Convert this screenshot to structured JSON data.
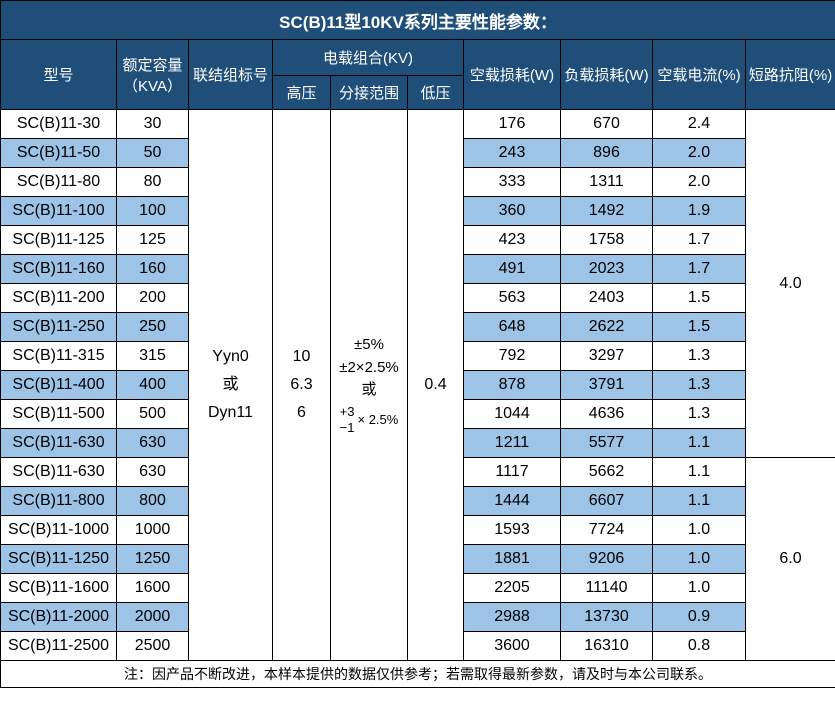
{
  "title": "SC(B)11型10KV系列主要性能参数：",
  "colors": {
    "header_bg": "#1F4E79",
    "alt_row_bg": "#9DC3E6",
    "row_bg": "#FFFFFF",
    "border": "#000000",
    "header_text": "#FFFFFF",
    "body_text": "#000000"
  },
  "header": {
    "model": "型号",
    "capacity_line1": "额定容量",
    "capacity_line2": "（KVA）",
    "connection": "联结组标号",
    "voltage_group": "电载组合(KV)",
    "hv": "高压",
    "tap_range": "分接范围",
    "lv": "低压",
    "no_load_loss": "空载损耗(W)",
    "load_loss": "负载损耗(W)",
    "no_load_current": "空载电流(%)",
    "impedance": "短路抗阻(%)"
  },
  "merged": {
    "connection_lines": [
      "Yyn0",
      "或",
      "Dyn11"
    ],
    "hv_lines": [
      "10",
      "6.3",
      "6"
    ],
    "tap_lines": [
      "±5%",
      "±2×2.5%",
      "或"
    ],
    "tap_fraction": {
      "top": "+3",
      "bottom": "−1",
      "suffix": "× 2.5%"
    },
    "lv": "0.4",
    "impedance_top": "4.0",
    "impedance_bottom": "6.0"
  },
  "rows": [
    {
      "model": "SC(B)11-30",
      "capacity": "30",
      "no_load_loss": "176",
      "load_loss": "670",
      "no_load_current": "2.4"
    },
    {
      "model": "SC(B)11-50",
      "capacity": "50",
      "no_load_loss": "243",
      "load_loss": "896",
      "no_load_current": "2.0"
    },
    {
      "model": "SC(B)11-80",
      "capacity": "80",
      "no_load_loss": "333",
      "load_loss": "1311",
      "no_load_current": "2.0"
    },
    {
      "model": "SC(B)11-100",
      "capacity": "100",
      "no_load_loss": "360",
      "load_loss": "1492",
      "no_load_current": "1.9"
    },
    {
      "model": "SC(B)11-125",
      "capacity": "125",
      "no_load_loss": "423",
      "load_loss": "1758",
      "no_load_current": "1.7"
    },
    {
      "model": "SC(B)11-160",
      "capacity": "160",
      "no_load_loss": "491",
      "load_loss": "2023",
      "no_load_current": "1.7"
    },
    {
      "model": "SC(B)11-200",
      "capacity": "200",
      "no_load_loss": "563",
      "load_loss": "2403",
      "no_load_current": "1.5"
    },
    {
      "model": "SC(B)11-250",
      "capacity": "250",
      "no_load_loss": "648",
      "load_loss": "2622",
      "no_load_current": "1.5"
    },
    {
      "model": "SC(B)11-315",
      "capacity": "315",
      "no_load_loss": "792",
      "load_loss": "3297",
      "no_load_current": "1.3"
    },
    {
      "model": "SC(B)11-400",
      "capacity": "400",
      "no_load_loss": "878",
      "load_loss": "3791",
      "no_load_current": "1.3"
    },
    {
      "model": "SC(B)11-500",
      "capacity": "500",
      "no_load_loss": "1044",
      "load_loss": "4636",
      "no_load_current": "1.3"
    },
    {
      "model": "SC(B)11-630",
      "capacity": "630",
      "no_load_loss": "1211",
      "load_loss": "5577",
      "no_load_current": "1.1"
    },
    {
      "model": "SC(B)11-630",
      "capacity": "630",
      "no_load_loss": "1117",
      "load_loss": "5662",
      "no_load_current": "1.1"
    },
    {
      "model": "SC(B)11-800",
      "capacity": "800",
      "no_load_loss": "1444",
      "load_loss": "6607",
      "no_load_current": "1.1"
    },
    {
      "model": "SC(B)11-1000",
      "capacity": "1000",
      "no_load_loss": "1593",
      "load_loss": "7724",
      "no_load_current": "1.0"
    },
    {
      "model": "SC(B)11-1250",
      "capacity": "1250",
      "no_load_loss": "1881",
      "load_loss": "9206",
      "no_load_current": "1.0"
    },
    {
      "model": "SC(B)11-1600",
      "capacity": "1600",
      "no_load_loss": "2205",
      "load_loss": "11140",
      "no_load_current": "1.0"
    },
    {
      "model": "SC(B)11-2000",
      "capacity": "2000",
      "no_load_loss": "2988",
      "load_loss": "13730",
      "no_load_current": "0.9"
    },
    {
      "model": "SC(B)11-2500",
      "capacity": "2500",
      "no_load_loss": "3600",
      "load_loss": "16310",
      "no_load_current": "0.8"
    }
  ],
  "note": "注：因产品不断改进，本样本提供的数据仅供参考；若需取得最新参数，请及时与本公司联系。"
}
